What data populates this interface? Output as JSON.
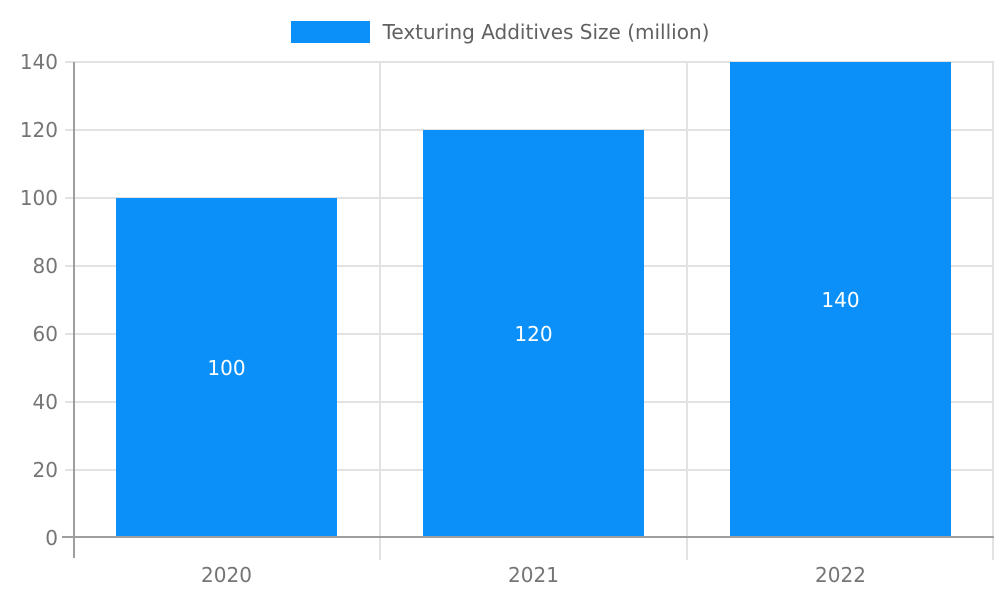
{
  "chart_data": {
    "type": "bar",
    "title": "",
    "legend_label": "Texturing Additives Size (million)",
    "legend_position": "top-center",
    "categories": [
      "2020",
      "2021",
      "2022"
    ],
    "values": [
      100,
      120,
      140
    ],
    "xlabel": "",
    "ylabel": "",
    "ylim": [
      0,
      140
    ],
    "ytick_step": 20,
    "yticks": [
      0,
      20,
      40,
      60,
      80,
      100,
      120,
      140
    ],
    "grid": true,
    "colors": {
      "bar": "#0a90f8",
      "grid": "#e2e2e2",
      "axis": "#9e9e9e",
      "tick_label": "#757575",
      "legend_text": "#616161",
      "value_label": "#ffffff",
      "background": "#ffffff"
    }
  }
}
